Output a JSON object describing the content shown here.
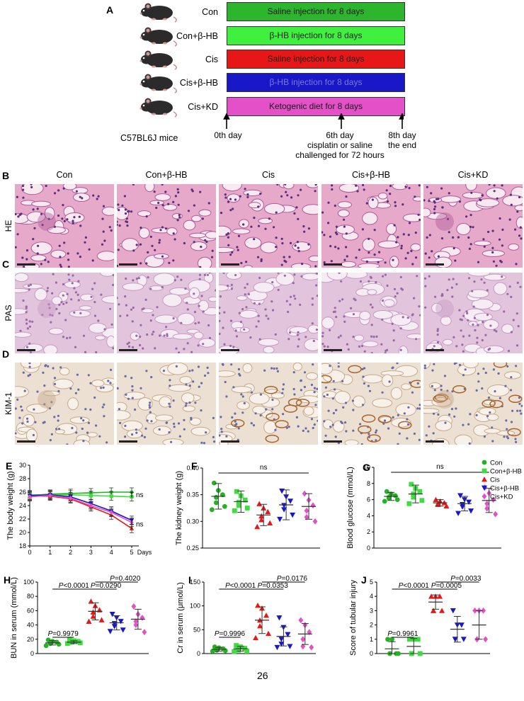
{
  "panel_a": {
    "label": "A",
    "groups": [
      {
        "name": "Con",
        "treatment": "Saline injection for 8 days",
        "color": "#2db52d",
        "text_color": "#1a1a1a"
      },
      {
        "name": "Con+β-HB",
        "treatment": "β-HB injection for 8 days",
        "color": "#3ff03f",
        "text_color": "#1a1a1a"
      },
      {
        "name": "Cis",
        "treatment": "Saline injection for 8 days",
        "color": "#e81717",
        "text_color": "#1a1a1a"
      },
      {
        "name": "Cis+β-HB",
        "treatment": "β-HB injection for 8 days",
        "color": "#1818c8",
        "text_color": "#7a7ad8"
      },
      {
        "name": "Cis+KD",
        "treatment": "Ketogenic diet for 8 days",
        "color": "#e450c8",
        "text_color": "#1a1a1a"
      }
    ],
    "mouse_label": "C57BL6J mice",
    "timeline": [
      "0th day",
      "6th day\ncisplatin or saline\nchallenged for 72 hours",
      "8th day\nthe end"
    ]
  },
  "histology": {
    "columns": [
      "Con",
      "Con+β-HB",
      "Cis",
      "Cis+β-HB",
      "Cis+KD"
    ],
    "rows": [
      {
        "panel": "B",
        "stain": "HE"
      },
      {
        "panel": "C",
        "stain": "PAS"
      },
      {
        "panel": "D",
        "stain": "KIM-1"
      }
    ]
  },
  "legend": {
    "entries": [
      {
        "name": "Con",
        "color": "#22b222",
        "marker": "circle"
      },
      {
        "name": "Con+β-HB",
        "color": "#3fdc3f",
        "marker": "square"
      },
      {
        "name": "Cis",
        "color": "#e81717",
        "marker": "triangle-up"
      },
      {
        "name": "Cis+β-HB",
        "color": "#1818c8",
        "marker": "triangle-down"
      },
      {
        "name": "Cis+KD",
        "color": "#e450c8",
        "marker": "diamond"
      }
    ]
  },
  "chart_data": [
    {
      "panel": "E",
      "type": "line",
      "ylabel": "The body weight (g)",
      "xlabel": "Days",
      "x": [
        0,
        1,
        2,
        3,
        4,
        5
      ],
      "xlim": [
        0,
        5
      ],
      "ylim": [
        18,
        30
      ],
      "yticks": [
        18,
        20,
        22,
        24,
        26,
        28,
        30
      ],
      "series": [
        {
          "name": "Con",
          "color": "#22b222",
          "values": [
            25.5,
            25.7,
            25.8,
            25.9,
            26.0,
            26.0
          ]
        },
        {
          "name": "Con+β-HB",
          "color": "#3fdc3f",
          "values": [
            25.6,
            25.6,
            25.6,
            25.5,
            25.4,
            25.3
          ]
        },
        {
          "name": "Cis",
          "color": "#e81717",
          "values": [
            25.4,
            25.4,
            25.0,
            23.8,
            22.6,
            20.6
          ]
        },
        {
          "name": "Cis+β-HB",
          "color": "#1818c8",
          "values": [
            25.5,
            25.6,
            25.3,
            24.3,
            23.2,
            21.8
          ]
        },
        {
          "name": "Cis+KD",
          "color": "#e450c8",
          "values": [
            25.3,
            25.5,
            25.1,
            24.0,
            23.0,
            21.5
          ]
        }
      ],
      "annotations": [
        "ns",
        "ns"
      ]
    },
    {
      "panel": "F",
      "type": "scatter",
      "ylabel": "The kidney weight (g)",
      "ylim": [
        0.25,
        0.4
      ],
      "yticks": [
        "0.25",
        "0.30",
        "0.35",
        "0.40"
      ],
      "bracket": "ns",
      "groups": [
        {
          "name": "Con",
          "mean": 0.347,
          "sd": 0.024,
          "points": [
            0.372,
            0.358,
            0.35,
            0.345,
            0.335,
            0.328,
            0.322
          ]
        },
        {
          "name": "Con+β-HB",
          "mean": 0.337,
          "sd": 0.02,
          "points": [
            0.356,
            0.348,
            0.34,
            0.336,
            0.33,
            0.325,
            0.32
          ]
        },
        {
          "name": "Cis",
          "mean": 0.312,
          "sd": 0.02,
          "points": [
            0.333,
            0.325,
            0.318,
            0.31,
            0.303,
            0.297,
            0.29
          ]
        },
        {
          "name": "Cis+β-HB",
          "mean": 0.331,
          "sd": 0.028,
          "points": [
            0.357,
            0.346,
            0.338,
            0.33,
            0.322,
            0.312,
            0.304
          ]
        },
        {
          "name": "Cis+KD",
          "mean": 0.328,
          "sd": 0.024,
          "points": [
            0.352,
            0.34,
            0.33,
            0.32,
            0.308,
            0.3
          ]
        }
      ]
    },
    {
      "panel": "G",
      "type": "scatter",
      "ylabel": "Blood glucose (mmol/L)",
      "ylim": [
        0,
        10
      ],
      "yticks": [
        "0",
        "2",
        "4",
        "6",
        "8",
        "10"
      ],
      "bracket": "ns",
      "groups": [
        {
          "name": "Con",
          "mean": 6.4,
          "sd": 0.5,
          "points": [
            7.0,
            6.7,
            6.5,
            6.3,
            6.2,
            6.0,
            5.8
          ]
        },
        {
          "name": "Con+β-HB",
          "mean": 6.7,
          "sd": 1.1,
          "points": [
            7.9,
            7.4,
            7.0,
            6.7,
            6.3,
            5.9,
            5.5
          ]
        },
        {
          "name": "Cis",
          "mean": 5.6,
          "sd": 0.4,
          "points": [
            6.0,
            5.8,
            5.6,
            5.5,
            5.4,
            5.2
          ]
        },
        {
          "name": "Cis+β-HB",
          "mean": 5.5,
          "sd": 0.9,
          "points": [
            6.5,
            6.0,
            5.7,
            5.4,
            5.1,
            4.6,
            4.3
          ]
        },
        {
          "name": "Cis+KD",
          "mean": 5.9,
          "sd": 1.5,
          "points": [
            7.5,
            6.8,
            6.0,
            5.5,
            4.9,
            4.2
          ]
        }
      ]
    },
    {
      "panel": "H",
      "type": "scatter",
      "ylabel": "BUN in serum (mmol/L)",
      "ylim": [
        0,
        100
      ],
      "yticks": [
        "0",
        "20",
        "40",
        "60",
        "80",
        "100"
      ],
      "pvalues": [
        {
          "text": "P=0.9979",
          "from": 0,
          "to": 1
        },
        {
          "text": "P<0.0001",
          "from": 0,
          "to": 2
        },
        {
          "text": "P=0.0290",
          "from": 2,
          "to": 3
        },
        {
          "text": "P=0.4020",
          "from": 2,
          "to": 4
        }
      ],
      "groups": [
        {
          "name": "Con",
          "mean": 15,
          "sd": 3,
          "points": [
            19,
            17,
            16,
            15,
            14,
            13,
            11
          ]
        },
        {
          "name": "Con+β-HB",
          "mean": 16,
          "sd": 2,
          "points": [
            19,
            18,
            17,
            16,
            16,
            15,
            14
          ]
        },
        {
          "name": "Cis",
          "mean": 59,
          "sd": 12,
          "points": [
            73,
            67,
            61,
            58,
            52,
            47,
            45
          ]
        },
        {
          "name": "Cis+β-HB",
          "mean": 43,
          "sd": 10,
          "points": [
            55,
            50,
            45,
            42,
            38,
            33,
            31
          ]
        },
        {
          "name": "Cis+KD",
          "mean": 48,
          "sd": 14,
          "points": [
            66,
            55,
            50,
            45,
            40,
            30
          ]
        }
      ]
    },
    {
      "panel": "I",
      "type": "scatter",
      "ylabel": "Cr in serum (μmol/L)",
      "ylim": [
        0,
        150
      ],
      "yticks": [
        "0",
        "50",
        "100",
        "150"
      ],
      "pvalues": [
        {
          "text": "P=0.9996",
          "from": 0,
          "to": 1
        },
        {
          "text": "P<0.0001",
          "from": 0,
          "to": 2
        },
        {
          "text": "P=0.0353",
          "from": 2,
          "to": 3
        },
        {
          "text": "P=0.0176",
          "from": 2,
          "to": 4
        }
      ],
      "groups": [
        {
          "name": "Con",
          "mean": 9,
          "sd": 4,
          "points": [
            14,
            12,
            10,
            8,
            7,
            6,
            5
          ]
        },
        {
          "name": "Con+β-HB",
          "mean": 10,
          "sd": 5,
          "points": [
            17,
            14,
            11,
            9,
            7,
            5,
            4
          ]
        },
        {
          "name": "Cis",
          "mean": 70,
          "sd": 28,
          "points": [
            101,
            95,
            80,
            70,
            58,
            42,
            33
          ]
        },
        {
          "name": "Cis+β-HB",
          "mean": 36,
          "sd": 20,
          "points": [
            75,
            55,
            40,
            30,
            20,
            15,
            13
          ]
        },
        {
          "name": "Cis+KD",
          "mean": 41,
          "sd": 22,
          "points": [
            70,
            60,
            45,
            30,
            15,
            13
          ]
        }
      ]
    },
    {
      "panel": "J",
      "type": "scatter",
      "ylabel": "Score of  tubular injury",
      "ylim": [
        0,
        5
      ],
      "yticks": [
        "0",
        "1",
        "2",
        "3",
        "4",
        "5"
      ],
      "pvalues": [
        {
          "text": "P=0.9961",
          "from": 0,
          "to": 1
        },
        {
          "text": "P<0.0001",
          "from": 0,
          "to": 2
        },
        {
          "text": "P=0.0005",
          "from": 2,
          "to": 3
        },
        {
          "text": "P=0.0033",
          "from": 2,
          "to": 4
        }
      ],
      "groups": [
        {
          "name": "Con",
          "mean": 0.33,
          "sd": 0.5,
          "points": [
            1,
            1,
            0,
            0,
            0,
            0
          ]
        },
        {
          "name": "Con+β-HB",
          "mean": 0.5,
          "sd": 0.55,
          "points": [
            1,
            1,
            1,
            0,
            0,
            0
          ]
        },
        {
          "name": "Cis",
          "mean": 3.6,
          "sd": 0.5,
          "points": [
            4,
            4,
            4,
            3,
            3,
            3
          ]
        },
        {
          "name": "Cis+β-HB",
          "mean": 1.7,
          "sd": 0.9,
          "points": [
            3,
            2,
            2,
            1,
            1,
            1
          ]
        },
        {
          "name": "Cis+KD",
          "mean": 2.0,
          "sd": 1.0,
          "points": [
            3,
            3,
            3,
            1,
            1,
            1
          ]
        }
      ]
    }
  ],
  "page": {
    "number": "26"
  }
}
